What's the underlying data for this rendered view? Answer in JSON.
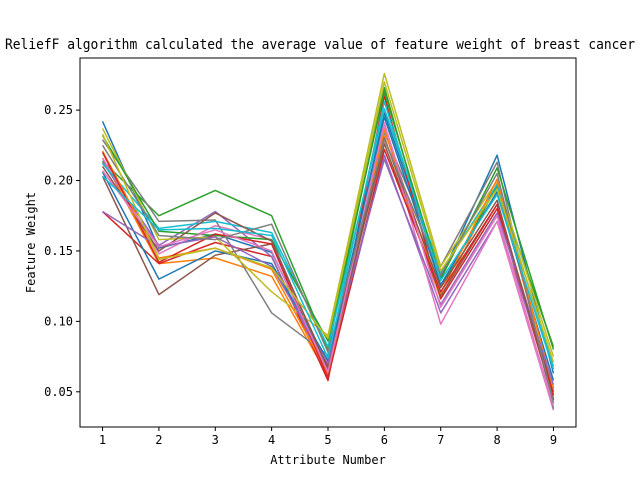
{
  "chart_data": {
    "type": "line",
    "title": "ReliefF algorithm calculated the average value of feature weight of breast cancer",
    "xlabel": "Attribute Number",
    "ylabel": "Feature Weight",
    "x": [
      1,
      2,
      3,
      4,
      5,
      6,
      7,
      8,
      9
    ],
    "xticks": [
      1,
      2,
      3,
      4,
      5,
      6,
      7,
      8,
      9
    ],
    "yticks": [
      0.05,
      0.1,
      0.15,
      0.2,
      0.25
    ],
    "ytick_labels": [
      "0.05",
      "0.10",
      "0.15",
      "0.20",
      "0.25"
    ],
    "xlim": [
      0.6,
      9.4
    ],
    "ylim": [
      0.025,
      0.287
    ],
    "grid": false,
    "legend": false,
    "series": [
      {
        "color": "#1f77b4",
        "values": [
          0.242,
          0.152,
          0.162,
          0.149,
          0.068,
          0.248,
          0.131,
          0.218,
          0.063
        ]
      },
      {
        "color": "#ff7f0e",
        "values": [
          0.216,
          0.141,
          0.145,
          0.132,
          0.061,
          0.231,
          0.116,
          0.198,
          0.047
        ]
      },
      {
        "color": "#2ca02c",
        "values": [
          0.214,
          0.175,
          0.193,
          0.175,
          0.08,
          0.266,
          0.124,
          0.196,
          0.082
        ]
      },
      {
        "color": "#d62728",
        "values": [
          0.178,
          0.141,
          0.156,
          0.146,
          0.058,
          0.26,
          0.116,
          0.18,
          0.045
        ]
      },
      {
        "color": "#9467bd",
        "values": [
          0.213,
          0.154,
          0.178,
          0.146,
          0.062,
          0.218,
          0.106,
          0.171,
          0.053
        ]
      },
      {
        "color": "#8c564b",
        "values": [
          0.203,
          0.119,
          0.147,
          0.155,
          0.068,
          0.226,
          0.118,
          0.183,
          0.05
        ]
      },
      {
        "color": "#e377c2",
        "values": [
          0.216,
          0.148,
          0.168,
          0.158,
          0.065,
          0.238,
          0.098,
          0.171,
          0.037
        ]
      },
      {
        "color": "#7f7f7f",
        "values": [
          0.229,
          0.171,
          0.172,
          0.106,
          0.076,
          0.234,
          0.139,
          0.213,
          0.038
        ]
      },
      {
        "color": "#bcbd22",
        "values": [
          0.237,
          0.158,
          0.16,
          0.121,
          0.09,
          0.276,
          0.139,
          0.2,
          0.075
        ]
      },
      {
        "color": "#17becf",
        "values": [
          0.212,
          0.166,
          0.171,
          0.163,
          0.082,
          0.251,
          0.135,
          0.197,
          0.068
        ]
      },
      {
        "color": "#1f77b4",
        "values": [
          0.206,
          0.13,
          0.15,
          0.141,
          0.072,
          0.245,
          0.126,
          0.192,
          0.058
        ]
      },
      {
        "color": "#ff7f0e",
        "values": [
          0.221,
          0.145,
          0.152,
          0.137,
          0.063,
          0.236,
          0.12,
          0.201,
          0.052
        ]
      },
      {
        "color": "#2ca02c",
        "values": [
          0.232,
          0.164,
          0.161,
          0.158,
          0.086,
          0.263,
          0.13,
          0.209,
          0.08
        ]
      },
      {
        "color": "#d62728",
        "values": [
          0.22,
          0.142,
          0.162,
          0.155,
          0.06,
          0.222,
          0.121,
          0.183,
          0.048
        ]
      },
      {
        "color": "#9467bd",
        "values": [
          0.178,
          0.153,
          0.16,
          0.139,
          0.07,
          0.215,
          0.112,
          0.177,
          0.055
        ]
      },
      {
        "color": "#8c564b",
        "values": [
          0.21,
          0.15,
          0.177,
          0.157,
          0.066,
          0.23,
          0.124,
          0.186,
          0.044
        ]
      },
      {
        "color": "#e377c2",
        "values": [
          0.207,
          0.153,
          0.165,
          0.15,
          0.064,
          0.241,
          0.11,
          0.175,
          0.04
        ]
      },
      {
        "color": "#7f7f7f",
        "values": [
          0.225,
          0.161,
          0.158,
          0.169,
          0.078,
          0.229,
          0.133,
          0.205,
          0.042
        ]
      },
      {
        "color": "#bcbd22",
        "values": [
          0.233,
          0.144,
          0.152,
          0.138,
          0.088,
          0.27,
          0.136,
          0.194,
          0.071
        ]
      },
      {
        "color": "#17becf",
        "values": [
          0.203,
          0.165,
          0.166,
          0.161,
          0.074,
          0.256,
          0.129,
          0.19,
          0.066
        ]
      }
    ]
  }
}
